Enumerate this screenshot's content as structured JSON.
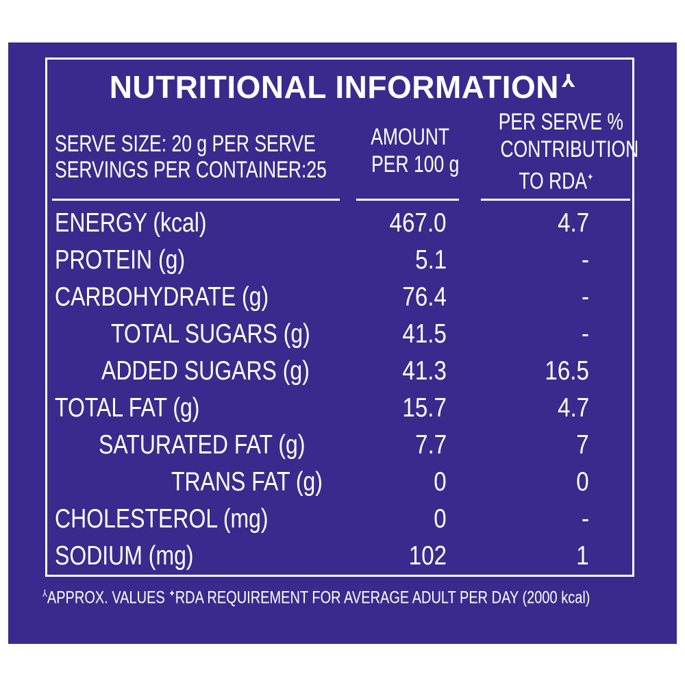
{
  "panel": {
    "title": "NUTRITIONAL INFORMATION",
    "title_mark": "⅄",
    "serve_size": "SERVE SIZE: 20 g PER SERVE",
    "servings": "SERVINGS PER CONTAINER:25",
    "col_amount_line1": "AMOUNT",
    "col_amount_line2": "PER 100 g",
    "col_rda_line1": "PER SERVE %",
    "col_rda_line2": "CONTRIBUTION",
    "col_rda_line3": "TO RDA",
    "col_rda_mark": "✦",
    "rows": [
      {
        "label": "ENERGY (kcal)",
        "amount": "467.0",
        "rda": "4.7"
      },
      {
        "label": "PROTEIN (g)",
        "amount": "5.1",
        "rda": "-"
      },
      {
        "label": "CARBOHYDRATE (g)",
        "amount": "76.4",
        "rda": "-"
      },
      {
        "label": "TOTAL SUGARS (g)",
        "amount": "41.5",
        "rda": "-"
      },
      {
        "label": "ADDED SUGARS (g)",
        "amount": "41.3",
        "rda": "16.5"
      },
      {
        "label": "TOTAL FAT (g)",
        "amount": "15.7",
        "rda": "4.7"
      },
      {
        "label": "SATURATED FAT (g)",
        "amount": "7.7",
        "rda": "7"
      },
      {
        "label": "TRANS FAT (g)",
        "amount": "0",
        "rda": "0"
      },
      {
        "label": "CHOLESTEROL (mg)",
        "amount": "0",
        "rda": "-"
      },
      {
        "label": "SODIUM (mg)",
        "amount": "102",
        "rda": "1"
      }
    ],
    "footnote_mark1": "⅄",
    "footnote_part1": "APPROX. VALUES ",
    "footnote_mark2": "✦",
    "footnote_part2": "RDA REQUIREMENT FOR AVERAGE ADULT PER DAY (2000 kcal)",
    "colors": {
      "background": "#3b2a8d",
      "text": "#ffffff"
    }
  }
}
